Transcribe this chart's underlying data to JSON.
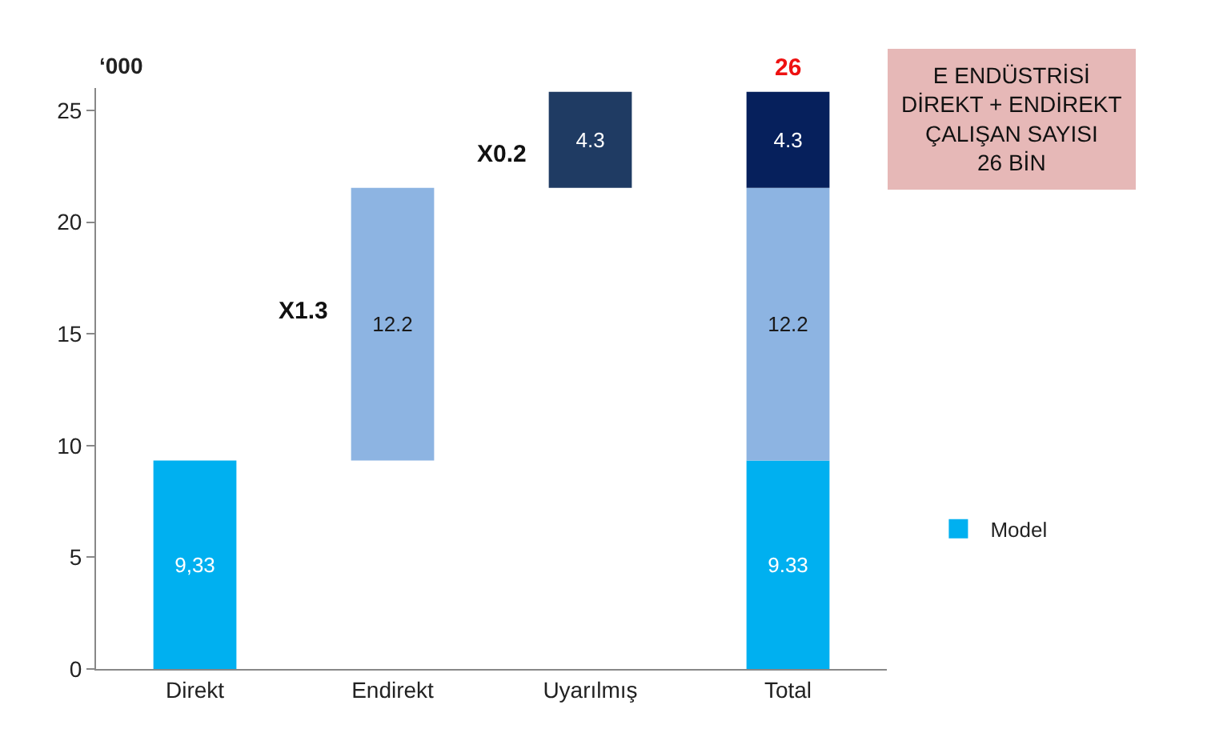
{
  "chart_data": {
    "type": "bar",
    "ylabel": "‘000",
    "categories": [
      "Direkt",
      "Endirekt",
      "Uyarılmış",
      "Total"
    ],
    "series": [
      {
        "name": "Model",
        "color": "#00b0f0",
        "values": [
          9.33,
          null,
          null,
          9.33
        ],
        "base": [
          0,
          null,
          null,
          0
        ],
        "value_labels": [
          "9,33",
          null,
          null,
          "9.33"
        ]
      },
      {
        "color": "#8db4e2",
        "values": [
          null,
          12.2,
          null,
          12.2
        ],
        "base": [
          null,
          9.33,
          null,
          9.33
        ],
        "value_labels": [
          null,
          "12.2",
          null,
          "12.2"
        ]
      },
      {
        "color": "#1f3864",
        "colors": [
          null,
          null,
          "#1f3b63",
          "#06205c"
        ],
        "values": [
          null,
          null,
          4.3,
          4.3
        ],
        "base": [
          null,
          null,
          21.53,
          21.53
        ],
        "value_labels": [
          null,
          null,
          "4.3",
          "4.3"
        ]
      }
    ],
    "totals": [
      null,
      null,
      null,
      "26"
    ],
    "ylim": [
      0,
      26
    ],
    "yticks": [
      0,
      5,
      10,
      15,
      20,
      25
    ],
    "legend": "right",
    "annotations": [
      "X1.3",
      "X0.2",
      "E ENDÜSTRİSİ\nDİREKT + ENDİREKT\nÇALIŞAN SAYISI\n26 BİN"
    ]
  }
}
